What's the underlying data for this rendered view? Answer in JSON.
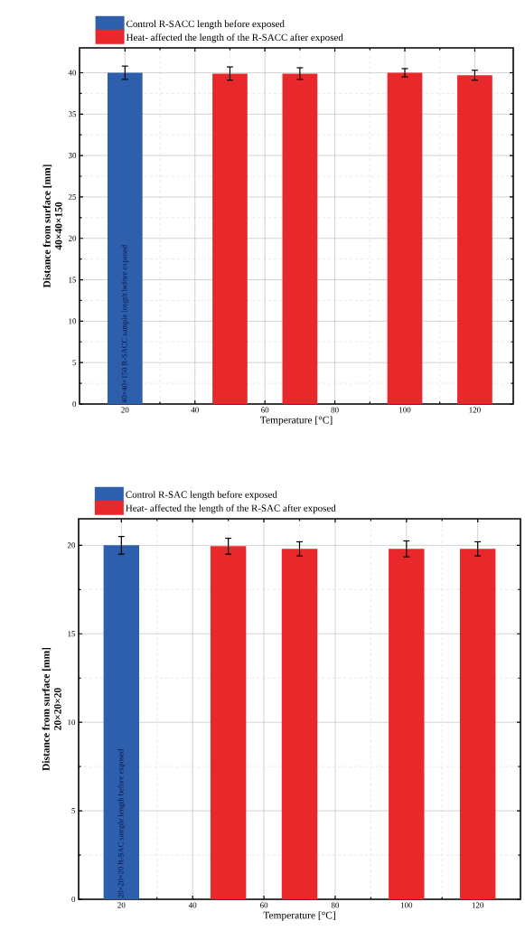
{
  "chart_data": [
    {
      "type": "bar",
      "xlabel": "Temperature [°C]",
      "ylabel": "Distance from surface [mm]",
      "annotations": [
        "40×40×150",
        "40×40×150 R-SACC sample length before exposed"
      ],
      "xlim": [
        7,
        131
      ],
      "xticks": [
        20,
        40,
        60,
        80,
        100,
        120
      ],
      "ylim": [
        0,
        43
      ],
      "yticks": [
        0,
        5,
        10,
        15,
        20,
        25,
        30,
        35,
        40
      ],
      "grid": true,
      "legend": "top",
      "series": [
        {
          "name": "Control R-SACC length before exposed",
          "color": "#2e5fad",
          "x": [
            20
          ],
          "values": [
            40
          ],
          "errors": [
            0.8
          ]
        },
        {
          "name": "Heat- affected the length of the  R-SACC after exposed",
          "color": "#e8282b",
          "x": [
            50,
            70,
            100,
            120
          ],
          "values": [
            39.9,
            39.9,
            40,
            39.7
          ],
          "errors": [
            0.8,
            0.7,
            0.5,
            0.6
          ]
        }
      ]
    },
    {
      "type": "bar",
      "xlabel": "Temperature [°C]",
      "ylabel": "Distance from surface [mm]",
      "annotations": [
        "20×20×20",
        "20×20×20 R-SAC sample length before exposed"
      ],
      "xlim": [
        8,
        132
      ],
      "xticks": [
        20,
        40,
        60,
        80,
        100,
        120
      ],
      "ylim": [
        0,
        21.5
      ],
      "yticks": [
        0,
        5,
        10,
        15,
        20
      ],
      "grid": true,
      "legend": "top",
      "series": [
        {
          "name": "Control R-SAC length before exposed",
          "color": "#2e5fad",
          "x": [
            20
          ],
          "values": [
            20
          ],
          "errors": [
            0.5
          ]
        },
        {
          "name": "Heat- affected the length of the  R-SAC after exposed",
          "color": "#e8282b",
          "x": [
            50,
            70,
            100,
            120
          ],
          "values": [
            19.95,
            19.8,
            19.8,
            19.8
          ],
          "errors": [
            0.45,
            0.4,
            0.45,
            0.4
          ]
        }
      ]
    }
  ]
}
